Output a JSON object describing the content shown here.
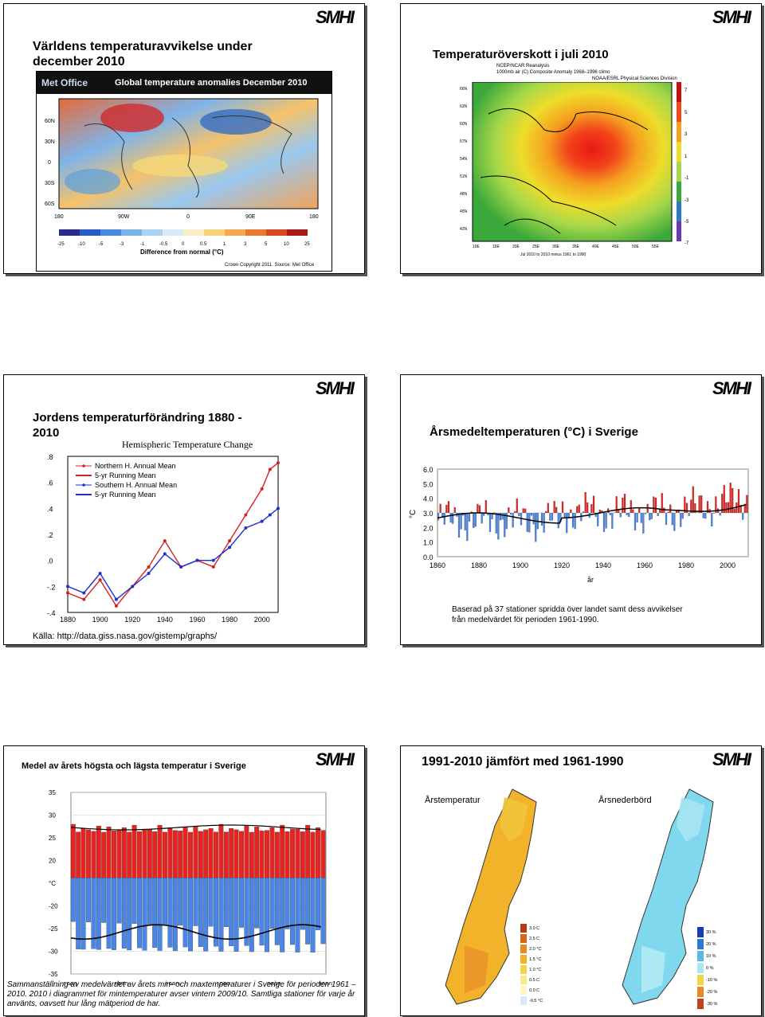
{
  "brand": "SMHI",
  "slide1": {
    "title": "Världens temperaturavvikelse under december 2010",
    "banner_org": "Met Office",
    "banner_title": "Global temperature anomalies December 2010",
    "lat_labels": [
      "60N",
      "30N",
      "0",
      "30S",
      "60S"
    ],
    "lon_labels": [
      "180",
      "90W",
      "0",
      "90E",
      "180"
    ],
    "scale_labels": [
      "-25",
      "-10",
      "-5",
      "-3",
      "-1",
      "-0.5",
      "0",
      "0.5",
      "1",
      "3",
      "5",
      "10",
      "25"
    ],
    "scale_caption": "Difference from normal (°C)",
    "copyright": "Crown Copyright 2011. Source: Met Office"
  },
  "slide2": {
    "title": "Temperaturöverskott i juli 2010",
    "source_lines": [
      "NCEP/NCAR Reanalysis",
      "1000mb air (C) Composite Anomaly 1968–1996 climo",
      "NOAA/ESRL Physical Sciences Division"
    ],
    "lat_labels": [
      "66N",
      "63N",
      "60N",
      "57N",
      "54N",
      "51N",
      "48N",
      "45N",
      "42N"
    ],
    "lon_labels": [
      "10E",
      "15E",
      "20E",
      "25E",
      "30E",
      "35E",
      "40E",
      "45E",
      "50E",
      "55E"
    ],
    "scale_labels": [
      "7",
      "5",
      "3",
      "1",
      "-1",
      "-3",
      "-5",
      "-7"
    ],
    "footer": "Jul 2010 to 2010 minus 1961 to 1990"
  },
  "slide3": {
    "title": "Jordens temperaturförändring 1880 - 2010",
    "chart_title": "Hemispheric Temperature Change",
    "legend": [
      "Northern H. Annual Mean",
      "5-yr Running Mean",
      "Southern H. Annual Mean",
      "5-yr Running Mean"
    ],
    "y_ticks": [
      ".8",
      ".6",
      ".4",
      ".2",
      ".0",
      "-.2",
      "-.4"
    ],
    "x_ticks": [
      "1880",
      "1900",
      "1920",
      "1940",
      "1960",
      "1980",
      "2000"
    ],
    "source": "Källa: http://data.giss.nasa.gov/gistemp/graphs/"
  },
  "slide4": {
    "title": "Årsmedeltemperaturen (°C) i Sverige",
    "y_ticks": [
      "6.0",
      "5.0",
      "4.0",
      "3.0",
      "2.0",
      "1.0",
      "0.0"
    ],
    "x_ticks": [
      "1860",
      "1880",
      "1900",
      "1920",
      "1940",
      "1960",
      "1980",
      "2000"
    ],
    "ylabel": "°C",
    "xlabel": "år",
    "caption": "Baserad på 37 stationer spridda över landet samt dess avvikelser från medelvärdet för perioden 1961-1990."
  },
  "slide5": {
    "title": "Medel av årets högsta och lägsta temperatur i Sverige",
    "y_ticks": [
      "35",
      "30",
      "25",
      "20",
      "°C",
      "-20",
      "-25",
      "-30",
      "-35"
    ],
    "x_ticks": [
      "1960",
      "1970",
      "1980",
      "1990",
      "2000",
      "2010"
    ],
    "caption": "Sammanställning av medelvärdet av årets min- och maxtemperaturer i Sverige för perioden 1961 – 2010. 2010 i diagrammet för mintemperaturer avser vintern 2009/10. Samtliga stationer för varje år använts, oavsett hur lång mätperiod de har."
  },
  "slide6": {
    "title": "1991-2010 jämfört med 1961-1990",
    "map1_label": "Årstemperatur",
    "map2_label": "Årsnederbörd",
    "legend1": [
      "3.0 C",
      "2.5 C",
      "2.0 °C",
      "1.5 °C",
      "1.0 °C",
      "0.5 C",
      "0.0 C",
      "-0.5 °C"
    ],
    "legend2": [
      "30 %",
      "20 %",
      "10 %",
      "0 %",
      "-10 %",
      "-20 %",
      "-30 %"
    ]
  },
  "colors": {
    "red_bar": "#e8231f",
    "blue_bar": "#4a86e8",
    "nh_line": "#d62020",
    "sh_line": "#2030d0"
  },
  "chart_data": [
    {
      "type": "line",
      "title": "Hemispheric Temperature Change",
      "series": [
        {
          "name": "Northern H. Annual Mean",
          "x": [
            1880,
            1890,
            1900,
            1910,
            1920,
            1930,
            1940,
            1950,
            1960,
            1970,
            1980,
            1990,
            2000,
            2005,
            2010
          ],
          "values": [
            -0.25,
            -0.3,
            -0.15,
            -0.35,
            -0.2,
            -0.05,
            0.15,
            -0.05,
            0.0,
            -0.05,
            0.15,
            0.35,
            0.55,
            0.7,
            0.75
          ]
        },
        {
          "name": "Southern H. Annual Mean",
          "x": [
            1880,
            1890,
            1900,
            1910,
            1920,
            1930,
            1940,
            1950,
            1960,
            1970,
            1980,
            1990,
            2000,
            2005,
            2010
          ],
          "values": [
            -0.2,
            -0.25,
            -0.1,
            -0.3,
            -0.2,
            -0.1,
            0.05,
            -0.05,
            0.0,
            0.0,
            0.1,
            0.25,
            0.3,
            0.35,
            0.4
          ]
        }
      ],
      "ylim": [
        -0.4,
        0.8
      ]
    },
    {
      "type": "bar",
      "title": "Årsmedeltemperaturen (°C) i Sverige",
      "baseline": 3.0,
      "ylim": [
        0,
        6
      ],
      "x_range": [
        1860,
        2010
      ]
    },
    {
      "type": "bar",
      "title": "Medel av årets högsta och lägsta temperatur i Sverige",
      "x_range": [
        1961,
        2010
      ],
      "max_level_approx": 28,
      "min_level_approx": -27
    }
  ]
}
